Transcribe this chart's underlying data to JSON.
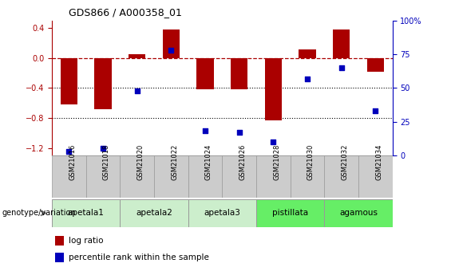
{
  "title": "GDS866 / A000358_01",
  "samples": [
    "GSM21016",
    "GSM21018",
    "GSM21020",
    "GSM21022",
    "GSM21024",
    "GSM21026",
    "GSM21028",
    "GSM21030",
    "GSM21032",
    "GSM21034"
  ],
  "log_ratio": [
    -0.62,
    -0.68,
    0.05,
    0.38,
    -0.42,
    -0.42,
    -0.83,
    0.12,
    0.38,
    -0.18
  ],
  "percentile_rank": [
    3,
    5,
    48,
    78,
    18,
    17,
    10,
    57,
    65,
    33
  ],
  "group_boundaries": [
    {
      "start": 0,
      "end": 2,
      "label": "apetala1",
      "color": "#cceecc"
    },
    {
      "start": 2,
      "end": 4,
      "label": "apetala2",
      "color": "#cceecc"
    },
    {
      "start": 4,
      "end": 6,
      "label": "apetala3",
      "color": "#cceecc"
    },
    {
      "start": 6,
      "end": 8,
      "label": "pistillata",
      "color": "#66ee66"
    },
    {
      "start": 8,
      "end": 10,
      "label": "agamous",
      "color": "#66ee66"
    }
  ],
  "ylim_left": [
    -1.3,
    0.5
  ],
  "ylim_right": [
    0,
    100
  ],
  "yticks_left": [
    -1.2,
    -0.8,
    -0.4,
    0.0,
    0.4
  ],
  "yticks_right": [
    0,
    25,
    50,
    75,
    100
  ],
  "bar_color": "#aa0000",
  "scatter_color": "#0000bb",
  "hline_y": 0.0,
  "dotted_lines": [
    -0.4,
    -0.8
  ],
  "bar_width": 0.5,
  "sample_bg_color": "#cccccc",
  "border_color": "#999999",
  "legend_bar_label": "log ratio",
  "legend_scatter_label": "percentile rank within the sample",
  "genotype_label": "genotype/variation"
}
